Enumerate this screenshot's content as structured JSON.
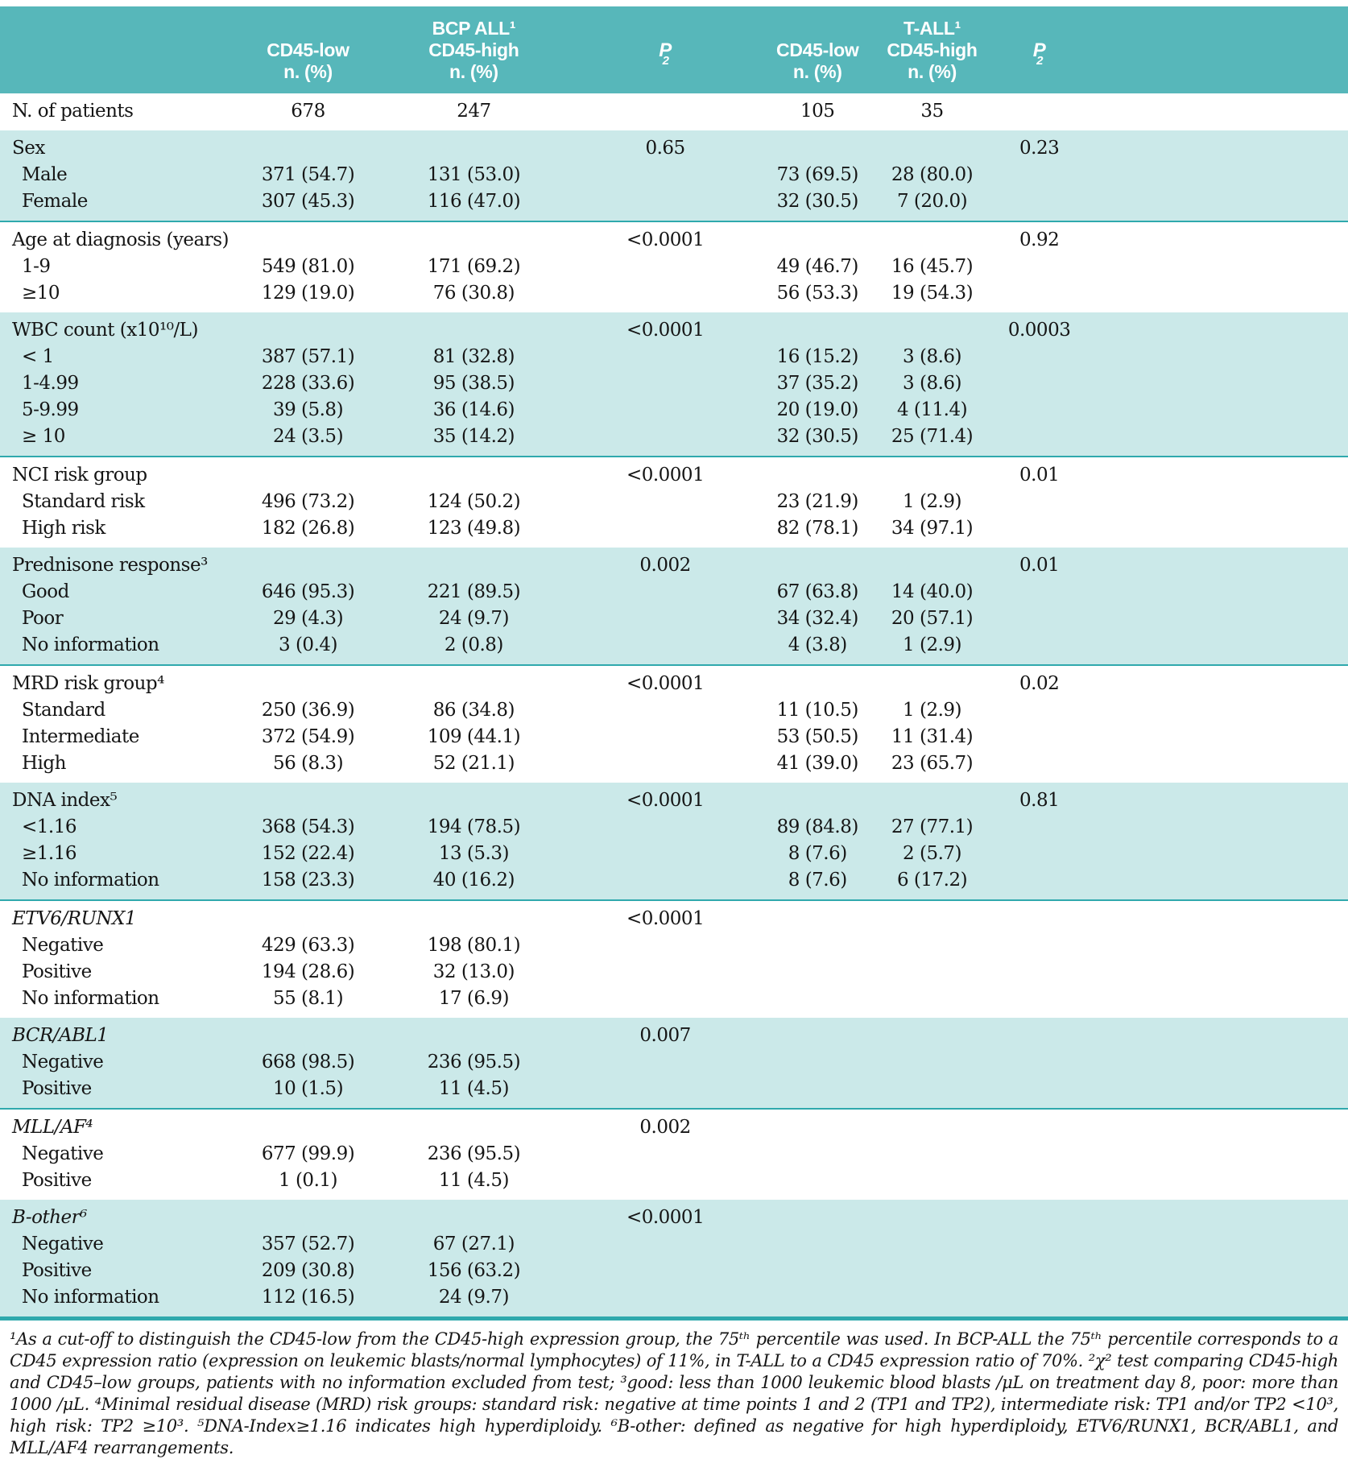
{
  "colors": {
    "header_teal": "#57b7ba",
    "row_teal": "#cbe9e9",
    "rule_teal": "#2fa9ad"
  },
  "table": {
    "header": {
      "group_bcp": "BCP ALL¹",
      "group_tall": "T-ALL¹",
      "col_low": "CD45-low",
      "col_high": "CD45-high",
      "col_n": "n. (%)",
      "p_base": "P",
      "p_sup": "2"
    },
    "sections": [
      {
        "id": "n-of-patients",
        "bg": "white",
        "label": "N. of patients",
        "italic": false,
        "p_bcp": "",
        "p_tall": "",
        "inline": {
          "bcp_low": "678",
          "bcp_high": "247",
          "tall_low": "105",
          "tall_high": "35"
        },
        "rows": []
      },
      {
        "id": "sex",
        "bg": "teal",
        "label": "Sex",
        "italic": false,
        "p_bcp": "0.65",
        "p_tall": "0.23",
        "rows": [
          {
            "label": "Male",
            "bcp_low": "371 (54.7)",
            "bcp_high": "131 (53.0)",
            "tall_low": "73 (69.5)",
            "tall_high": "28 (80.0)"
          },
          {
            "label": "Female",
            "bcp_low": "307 (45.3)",
            "bcp_high": "116 (47.0)",
            "tall_low": "32 (30.5)",
            "tall_high": "7 (20.0)"
          }
        ]
      },
      {
        "id": "age",
        "bg": "white",
        "label": "Age at diagnosis (years)",
        "italic": false,
        "p_bcp": "<0.0001",
        "p_tall": "0.92",
        "rows": [
          {
            "label": "1-9",
            "bcp_low": "549 (81.0)",
            "bcp_high": "171 (69.2)",
            "tall_low": "49 (46.7)",
            "tall_high": "16 (45.7)"
          },
          {
            "label": "≥10",
            "bcp_low": "129 (19.0)",
            "bcp_high": "76 (30.8)",
            "tall_low": "56 (53.3)",
            "tall_high": "19 (54.3)"
          }
        ]
      },
      {
        "id": "wbc",
        "bg": "teal",
        "label": "WBC count (x10¹⁰/L)",
        "italic": false,
        "p_bcp": "<0.0001",
        "p_tall": "0.0003",
        "rows": [
          {
            "label": "< 1",
            "bcp_low": "387 (57.1)",
            "bcp_high": "81 (32.8)",
            "tall_low": "16 (15.2)",
            "tall_high": "3 (8.6)"
          },
          {
            "label": "1-4.99",
            "bcp_low": "228 (33.6)",
            "bcp_high": "95 (38.5)",
            "tall_low": "37 (35.2)",
            "tall_high": "3 (8.6)"
          },
          {
            "label": "5-9.99",
            "bcp_low": "39 (5.8)",
            "bcp_high": "36 (14.6)",
            "tall_low": "20 (19.0)",
            "tall_high": "4 (11.4)"
          },
          {
            "label": "≥ 10",
            "bcp_low": "24 (3.5)",
            "bcp_high": "35 (14.2)",
            "tall_low": "32 (30.5)",
            "tall_high": "25 (71.4)"
          }
        ]
      },
      {
        "id": "nci",
        "bg": "white",
        "label": "NCI risk group",
        "italic": false,
        "p_bcp": "<0.0001",
        "p_tall": "0.01",
        "rows": [
          {
            "label": "Standard risk",
            "bcp_low": "496 (73.2)",
            "bcp_high": "124 (50.2)",
            "tall_low": "23 (21.9)",
            "tall_high": "1 (2.9)"
          },
          {
            "label": "High risk",
            "bcp_low": "182 (26.8)",
            "bcp_high": "123 (49.8)",
            "tall_low": "82 (78.1)",
            "tall_high": "34 (97.1)"
          }
        ]
      },
      {
        "id": "prednisone",
        "bg": "teal",
        "label": "Prednisone response³",
        "italic": false,
        "p_bcp": "0.002",
        "p_tall": "0.01",
        "rows": [
          {
            "label": "Good",
            "bcp_low": "646 (95.3)",
            "bcp_high": "221 (89.5)",
            "tall_low": "67 (63.8)",
            "tall_high": "14 (40.0)"
          },
          {
            "label": "Poor",
            "bcp_low": "29 (4.3)",
            "bcp_high": "24 (9.7)",
            "tall_low": "34 (32.4)",
            "tall_high": "20 (57.1)"
          },
          {
            "label": "No information",
            "bcp_low": "3 (0.4)",
            "bcp_high": "2 (0.8)",
            "tall_low": "4 (3.8)",
            "tall_high": "1 (2.9)"
          }
        ]
      },
      {
        "id": "mrd",
        "bg": "white",
        "label": "MRD risk group⁴",
        "italic": false,
        "p_bcp": "<0.0001",
        "p_tall": "0.02",
        "rows": [
          {
            "label": "Standard",
            "bcp_low": "250 (36.9)",
            "bcp_high": "86 (34.8)",
            "tall_low": "11 (10.5)",
            "tall_high": "1 (2.9)"
          },
          {
            "label": "Intermediate",
            "bcp_low": "372 (54.9)",
            "bcp_high": "109 (44.1)",
            "tall_low": "53 (50.5)",
            "tall_high": "11 (31.4)"
          },
          {
            "label": "High",
            "bcp_low": "56 (8.3)",
            "bcp_high": "52 (21.1)",
            "tall_low": "41 (39.0)",
            "tall_high": "23 (65.7)"
          }
        ]
      },
      {
        "id": "dna-index",
        "bg": "teal",
        "label": "DNA index⁵",
        "italic": false,
        "p_bcp": "<0.0001",
        "p_tall": "0.81",
        "rows": [
          {
            "label": "<1.16",
            "bcp_low": "368 (54.3)",
            "bcp_high": "194 (78.5)",
            "tall_low": "89 (84.8)",
            "tall_high": "27 (77.1)"
          },
          {
            "label": "≥1.16",
            "bcp_low": "152 (22.4)",
            "bcp_high": "13 (5.3)",
            "tall_low": "8 (7.6)",
            "tall_high": "2 (5.7)"
          },
          {
            "label": "No information",
            "bcp_low": "158 (23.3)",
            "bcp_high": "40 (16.2)",
            "tall_low": "8 (7.6)",
            "tall_high": "6 (17.2)"
          }
        ]
      },
      {
        "id": "etv6-runx1",
        "bg": "white",
        "label": "ETV6/RUNX1",
        "italic": true,
        "p_bcp": "<0.0001",
        "p_tall": "",
        "rows": [
          {
            "label": "Negative",
            "bcp_low": "429 (63.3)",
            "bcp_high": "198 (80.1)"
          },
          {
            "label": "Positive",
            "bcp_low": "194 (28.6)",
            "bcp_high": "32 (13.0)"
          },
          {
            "label": "No information",
            "bcp_low": "55 (8.1)",
            "bcp_high": "17 (6.9)"
          }
        ]
      },
      {
        "id": "bcr-abl1",
        "bg": "teal",
        "label": "BCR/ABL1",
        "italic": true,
        "p_bcp": "0.007",
        "p_tall": "",
        "rows": [
          {
            "label": "Negative",
            "bcp_low": "668 (98.5)",
            "bcp_high": "236 (95.5)"
          },
          {
            "label": "Positive",
            "bcp_low": "10 (1.5)",
            "bcp_high": "11 (4.5)"
          }
        ]
      },
      {
        "id": "mll-af4",
        "bg": "white",
        "label": "MLL/AF⁴",
        "italic": true,
        "p_bcp": "0.002",
        "p_tall": "",
        "rows": [
          {
            "label": "Negative",
            "bcp_low": "677 (99.9)",
            "bcp_high": "236 (95.5)"
          },
          {
            "label": "Positive",
            "bcp_low": "1 (0.1)",
            "bcp_high": "11 (4.5)"
          }
        ]
      },
      {
        "id": "b-other",
        "bg": "teal",
        "last": true,
        "label": "B-other⁶",
        "italic": true,
        "p_bcp": "<0.0001",
        "p_tall": "",
        "rows": [
          {
            "label": "Negative",
            "bcp_low": "357 (52.7)",
            "bcp_high": "67 (27.1)"
          },
          {
            "label": "Positive",
            "bcp_low": "209 (30.8)",
            "bcp_high": "156 (63.2)"
          },
          {
            "label": "No information",
            "bcp_low": "112 (16.5)",
            "bcp_high": "24 (9.7)"
          }
        ]
      }
    ]
  },
  "footnote": {
    "text": "¹As a cut-off to distinguish the CD45-low from the CD45-high expression group, the 75ᵗʰ percentile was used. In BCP-ALL the 75ᵗʰ percentile corresponds to a CD45 expression ratio (expression on leukemic blasts/normal lymphocytes) of 11%, in T-ALL to a CD45 expression ratio of 70%. ²χ² test comparing CD45-high and CD45–low groups, patients with no information excluded from test; ³good: less than 1000 leukemic blood blasts /μL on treatment day 8, poor: more than 1000 /μL. ⁴Minimal residual disease (MRD) risk groups: standard risk: negative at time points 1 and 2 (TP1 and TP2), intermediate risk: TP1 and/or TP2 <10³, high risk: TP2 ≥10³. ⁵DNA-Index≥1.16 indicates high hyperdiploidy. ⁶B-other: defined as negative for high hyperdiploidy, ETV6/RUNX1, BCR/ABL1, and MLL/AF4 rearrangements."
  }
}
